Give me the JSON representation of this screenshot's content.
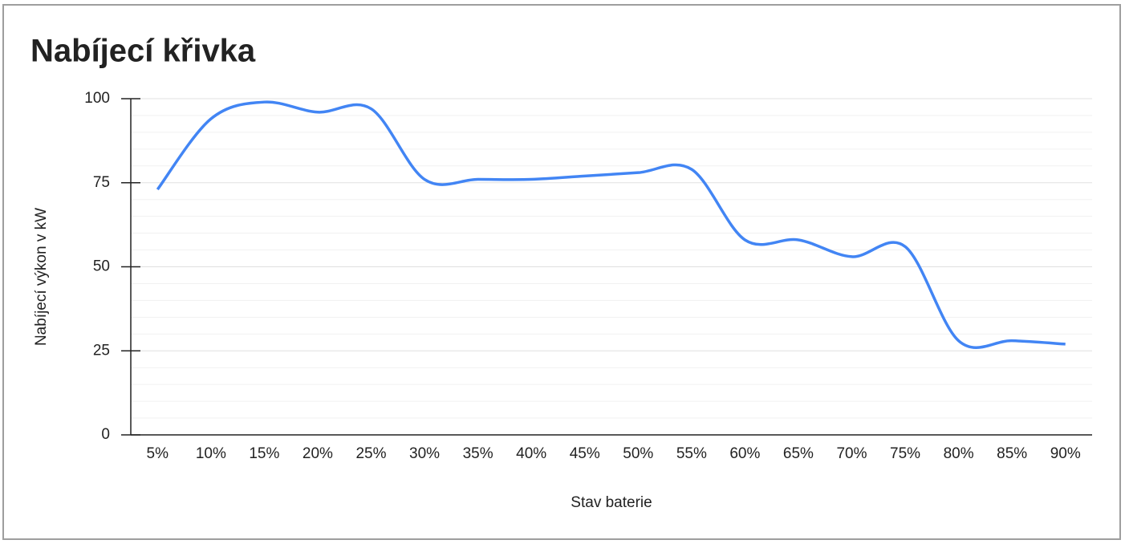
{
  "chart_data": {
    "type": "line",
    "title": "Nabíjecí křivka",
    "x_label": "Stav baterie",
    "y_label": "Nabíjecí výkon v kW",
    "categories": [
      "5%",
      "10%",
      "15%",
      "20%",
      "25%",
      "30%",
      "35%",
      "40%",
      "45%",
      "50%",
      "55%",
      "60%",
      "65%",
      "70%",
      "75%",
      "80%",
      "85%",
      "90%"
    ],
    "series": [
      {
        "name": "Nabíjecí výkon v kW",
        "color": "#4285f4",
        "values": [
          73,
          94,
          99,
          96,
          97,
          76,
          76,
          76,
          77,
          78,
          79,
          58,
          58,
          53,
          56,
          28,
          28,
          27
        ]
      }
    ],
    "ylim": [
      0,
      100
    ],
    "yticks": [
      0,
      25,
      50,
      75,
      100
    ],
    "grid": true,
    "smooth": true
  }
}
